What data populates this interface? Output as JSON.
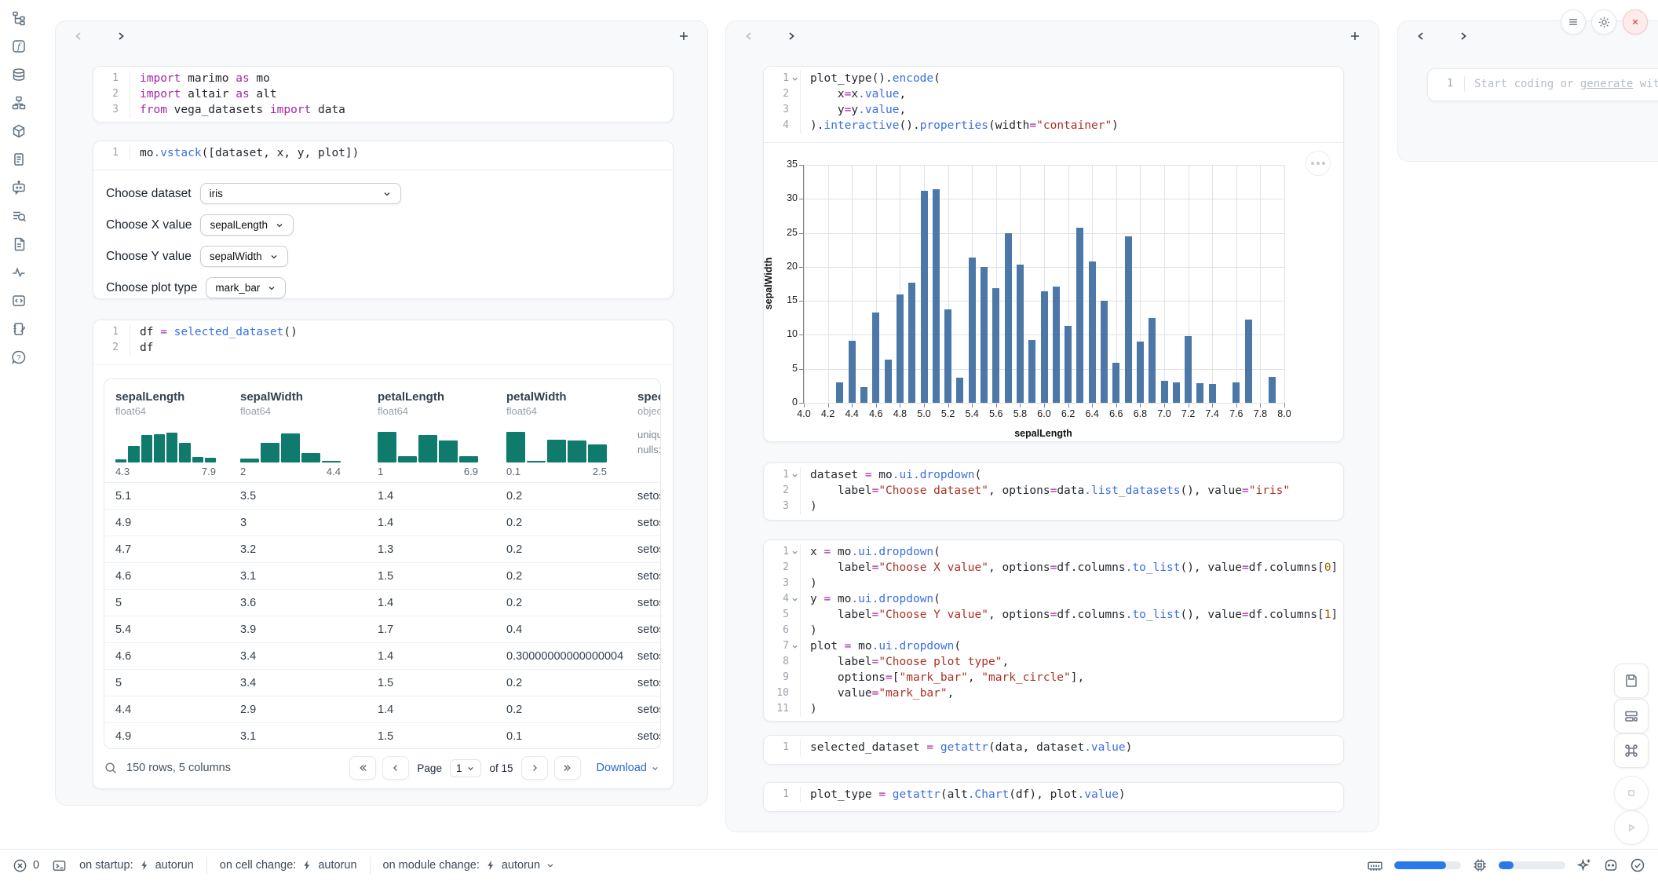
{
  "colors": {
    "accent_blue": "#2979e8",
    "chart_bar_blue": "#4c78a8",
    "histogram_teal": "#0f7b6c",
    "close_red": "#d64545"
  },
  "activity_bar": {
    "icons": [
      "file-tree",
      "functions",
      "datasources",
      "dependency-graph",
      "packages",
      "logs",
      "ai-chat",
      "trace-search",
      "documentation",
      "tracing",
      "snippets",
      "scratchpad",
      "help"
    ]
  },
  "left_panel": {
    "cells": {
      "imports": {
        "lines": [
          {
            "n": "1",
            "tk": [
              [
                "kw",
                "import"
              ],
              [
                "d",
                " marimo "
              ],
              [
                "kw",
                "as"
              ],
              [
                "d",
                " mo"
              ]
            ]
          },
          {
            "n": "2",
            "tk": [
              [
                "kw",
                "import"
              ],
              [
                "d",
                " altair "
              ],
              [
                "kw",
                "as"
              ],
              [
                "d",
                " alt"
              ]
            ]
          },
          {
            "n": "3",
            "tk": [
              [
                "kw",
                "from"
              ],
              [
                "d",
                " vega_datasets "
              ],
              [
                "kw",
                "import"
              ],
              [
                "d",
                " data"
              ]
            ]
          }
        ]
      },
      "vstack": {
        "lines": [
          {
            "n": "1",
            "tk": [
              [
                "d",
                "mo"
              ],
              [
                "f",
                ".vstack"
              ],
              [
                "d",
                "([dataset, x, y, plot])"
              ]
            ]
          }
        ]
      },
      "df": {
        "lines": [
          {
            "n": "1",
            "tk": [
              [
                "d",
                "df "
              ],
              [
                "o",
                "="
              ],
              [
                "d",
                " "
              ],
              [
                "f",
                "selected_dataset"
              ],
              [
                "d",
                "()"
              ]
            ]
          },
          {
            "n": "2",
            "tk": [
              [
                "d",
                "df"
              ]
            ]
          }
        ]
      }
    },
    "controls": [
      {
        "name": "dataset-dropdown",
        "label": "Choose dataset",
        "value": "iris",
        "wide": true
      },
      {
        "name": "x-value-dropdown",
        "label": "Choose X value",
        "value": "sepalLength"
      },
      {
        "name": "y-value-dropdown",
        "label": "Choose Y value",
        "value": "sepalWidth"
      },
      {
        "name": "plot-type-dropdown",
        "label": "Choose plot type",
        "value": "mark_bar"
      }
    ],
    "table": {
      "columns": [
        {
          "name": "sepalLength",
          "dtype": "float64",
          "min": "4.3",
          "max": "7.9",
          "hist": [
            9,
            43,
            73,
            76,
            79,
            53,
            14,
            12
          ]
        },
        {
          "name": "sepalWidth",
          "dtype": "float64",
          "min": "2",
          "max": "4.4",
          "hist": [
            11,
            52,
            78,
            24,
            4
          ]
        },
        {
          "name": "petalLength",
          "dtype": "float64",
          "min": "1",
          "max": "6.9",
          "hist": [
            82,
            17,
            72,
            58,
            17
          ]
        },
        {
          "name": "petalWidth",
          "dtype": "float64",
          "min": "0.1",
          "max": "2.5",
          "hist": [
            82,
            5,
            60,
            58,
            48
          ]
        },
        {
          "name": "species",
          "dtype": "object",
          "meta": [
            "unique",
            "nulls:"
          ]
        }
      ],
      "rows": [
        [
          "5.1",
          "3.5",
          "1.4",
          "0.2",
          "setosa"
        ],
        [
          "4.9",
          "3",
          "1.4",
          "0.2",
          "setosa"
        ],
        [
          "4.7",
          "3.2",
          "1.3",
          "0.2",
          "setosa"
        ],
        [
          "4.6",
          "3.1",
          "1.5",
          "0.2",
          "setosa"
        ],
        [
          "5",
          "3.6",
          "1.4",
          "0.2",
          "setosa"
        ],
        [
          "5.4",
          "3.9",
          "1.7",
          "0.4",
          "setosa"
        ],
        [
          "4.6",
          "3.4",
          "1.4",
          "0.30000000000000004",
          "setosa"
        ],
        [
          "5",
          "3.4",
          "1.5",
          "0.2",
          "setosa"
        ],
        [
          "4.4",
          "2.9",
          "1.4",
          "0.2",
          "setosa"
        ],
        [
          "4.9",
          "3.1",
          "1.5",
          "0.1",
          "setosa"
        ]
      ],
      "footer": {
        "summary": "150 rows, 5 columns",
        "page_label": "Page",
        "page_value": "1",
        "of_label": "of 15",
        "download_label": "Download"
      }
    }
  },
  "middle_panel": {
    "cells": {
      "plot": {
        "lines": [
          {
            "n": "1",
            "fold": true,
            "tk": [
              [
                "d",
                "plot_type()."
              ],
              [
                "f",
                "encode"
              ],
              [
                "d",
                "("
              ]
            ]
          },
          {
            "n": "2",
            "tk": [
              [
                "d",
                "    x"
              ],
              [
                "o",
                "="
              ],
              [
                "d",
                "x"
              ],
              [
                "f",
                ".value"
              ],
              [
                "d",
                ","
              ]
            ]
          },
          {
            "n": "3",
            "tk": [
              [
                "d",
                "    y"
              ],
              [
                "o",
                "="
              ],
              [
                "d",
                "y"
              ],
              [
                "f",
                ".value"
              ],
              [
                "d",
                ","
              ]
            ]
          },
          {
            "n": "4",
            "tk": [
              [
                "d",
                ")."
              ],
              [
                "f",
                "interactive"
              ],
              [
                "d",
                "()."
              ],
              [
                "f",
                "properties"
              ],
              [
                "d",
                "(width"
              ],
              [
                "o",
                "="
              ],
              [
                "s",
                "\"container\""
              ],
              [
                "d",
                ")"
              ]
            ]
          }
        ]
      },
      "dataset": {
        "lines": [
          {
            "n": "1",
            "fold": true,
            "tk": [
              [
                "d",
                "dataset "
              ],
              [
                "o",
                "="
              ],
              [
                "d",
                " mo"
              ],
              [
                "f",
                ".ui.dropdown"
              ],
              [
                "d",
                "("
              ]
            ]
          },
          {
            "n": "2",
            "tk": [
              [
                "d",
                "    label"
              ],
              [
                "o",
                "="
              ],
              [
                "s",
                "\"Choose dataset\""
              ],
              [
                "d",
                ", options"
              ],
              [
                "o",
                "="
              ],
              [
                "d",
                "data"
              ],
              [
                "f",
                ".list_datasets"
              ],
              [
                "d",
                "(), value"
              ],
              [
                "o",
                "="
              ],
              [
                "s",
                "\"iris\""
              ]
            ]
          },
          {
            "n": "3",
            "tk": [
              [
                "d",
                ")"
              ]
            ]
          }
        ]
      },
      "xyplot": {
        "lines": [
          {
            "n": "1",
            "fold": true,
            "tk": [
              [
                "d",
                "x "
              ],
              [
                "o",
                "="
              ],
              [
                "d",
                " mo"
              ],
              [
                "f",
                ".ui.dropdown"
              ],
              [
                "d",
                "("
              ]
            ]
          },
          {
            "n": "2",
            "tk": [
              [
                "d",
                "    label"
              ],
              [
                "o",
                "="
              ],
              [
                "s",
                "\"Choose X value\""
              ],
              [
                "d",
                ", options"
              ],
              [
                "o",
                "="
              ],
              [
                "d",
                "df.columns"
              ],
              [
                "f",
                ".to_list"
              ],
              [
                "d",
                "(), value"
              ],
              [
                "o",
                "="
              ],
              [
                "d",
                "df.columns["
              ],
              [
                "n",
                "0"
              ],
              [
                "d",
                "]"
              ]
            ]
          },
          {
            "n": "3",
            "tk": [
              [
                "d",
                ")"
              ]
            ]
          },
          {
            "n": "4",
            "fold": true,
            "tk": [
              [
                "d",
                "y "
              ],
              [
                "o",
                "="
              ],
              [
                "d",
                " mo"
              ],
              [
                "f",
                ".ui.dropdown"
              ],
              [
                "d",
                "("
              ]
            ]
          },
          {
            "n": "5",
            "tk": [
              [
                "d",
                "    label"
              ],
              [
                "o",
                "="
              ],
              [
                "s",
                "\"Choose Y value\""
              ],
              [
                "d",
                ", options"
              ],
              [
                "o",
                "="
              ],
              [
                "d",
                "df.columns"
              ],
              [
                "f",
                ".to_list"
              ],
              [
                "d",
                "(), value"
              ],
              [
                "o",
                "="
              ],
              [
                "d",
                "df.columns["
              ],
              [
                "n",
                "1"
              ],
              [
                "d",
                "]"
              ]
            ]
          },
          {
            "n": "6",
            "tk": [
              [
                "d",
                ")"
              ]
            ]
          },
          {
            "n": "7",
            "fold": true,
            "tk": [
              [
                "d",
                "plot "
              ],
              [
                "o",
                "="
              ],
              [
                "d",
                " mo"
              ],
              [
                "f",
                ".ui.dropdown"
              ],
              [
                "d",
                "("
              ]
            ]
          },
          {
            "n": "8",
            "tk": [
              [
                "d",
                "    label"
              ],
              [
                "o",
                "="
              ],
              [
                "s",
                "\"Choose plot type\""
              ],
              [
                "d",
                ","
              ]
            ]
          },
          {
            "n": "9",
            "tk": [
              [
                "d",
                "    options"
              ],
              [
                "o",
                "="
              ],
              [
                "d",
                "["
              ],
              [
                "s",
                "\"mark_bar\""
              ],
              [
                "d",
                ", "
              ],
              [
                "s",
                "\"mark_circle\""
              ],
              [
                "d",
                "],"
              ]
            ]
          },
          {
            "n": "10",
            "tk": [
              [
                "d",
                "    value"
              ],
              [
                "o",
                "="
              ],
              [
                "s",
                "\"mark_bar\""
              ],
              [
                "d",
                ","
              ]
            ]
          },
          {
            "n": "11",
            "tk": [
              [
                "d",
                ")"
              ]
            ]
          }
        ]
      },
      "selected": {
        "lines": [
          {
            "n": "1",
            "tk": [
              [
                "d",
                "selected_dataset "
              ],
              [
                "o",
                "="
              ],
              [
                "d",
                " "
              ],
              [
                "f",
                "getattr"
              ],
              [
                "d",
                "(data, dataset"
              ],
              [
                "f",
                ".value"
              ],
              [
                "d",
                ")"
              ]
            ]
          }
        ]
      },
      "plottype": {
        "lines": [
          {
            "n": "1",
            "tk": [
              [
                "d",
                "plot_type "
              ],
              [
                "o",
                "="
              ],
              [
                "d",
                " "
              ],
              [
                "f",
                "getattr"
              ],
              [
                "d",
                "(alt"
              ],
              [
                "f",
                ".Chart"
              ],
              [
                "d",
                "(df), plot"
              ],
              [
                "f",
                ".value"
              ],
              [
                "d",
                ")"
              ]
            ]
          }
        ]
      }
    }
  },
  "chart_data": {
    "type": "bar",
    "xlabel": "sepalLength",
    "ylabel": "sepalWidth",
    "xlim": [
      4.0,
      8.0
    ],
    "ylim": [
      0,
      35
    ],
    "grid": true,
    "bar_color": "#4c78a8",
    "x_tick_labels": [
      "4.0",
      "4.2",
      "4.4",
      "4.6",
      "4.8",
      "5.0",
      "5.2",
      "5.4",
      "5.6",
      "5.8",
      "6.0",
      "6.2",
      "6.4",
      "6.6",
      "6.8",
      "7.0",
      "7.2",
      "7.4",
      "7.6",
      "7.8",
      "8.0"
    ],
    "y_ticks": [
      0,
      5,
      10,
      15,
      20,
      25,
      30,
      35
    ],
    "x": [
      4.3,
      4.4,
      4.5,
      4.6,
      4.7,
      4.8,
      4.9,
      5.0,
      5.1,
      5.2,
      5.3,
      5.4,
      5.5,
      5.6,
      5.7,
      5.8,
      5.9,
      6.0,
      6.1,
      6.2,
      6.3,
      6.4,
      6.5,
      6.6,
      6.7,
      6.8,
      6.9,
      7.0,
      7.1,
      7.2,
      7.3,
      7.4,
      7.6,
      7.7,
      7.9
    ],
    "values": [
      3.0,
      9.1,
      2.3,
      13.3,
      6.4,
      15.9,
      17.7,
      31.2,
      31.4,
      13.7,
      3.7,
      21.4,
      20.0,
      16.9,
      24.9,
      20.3,
      9.2,
      16.4,
      17.1,
      11.3,
      25.8,
      20.8,
      15.0,
      5.9,
      24.5,
      9.0,
      12.5,
      3.2,
      3.0,
      9.8,
      2.9,
      2.8,
      3.0,
      12.2,
      3.8
    ]
  },
  "right_panel": {
    "line_number": "1",
    "placeholder_prefix": "Start coding or ",
    "placeholder_link": "generate",
    "placeholder_suffix": " with"
  },
  "status_bar": {
    "error_count": "0",
    "startup_label": "on startup:",
    "startup_value": "autorun",
    "cell_change_label": "on cell change:",
    "cell_change_value": "autorun",
    "module_change_label": "on module change:",
    "module_change_value": "autorun",
    "ram_pct": 78,
    "cpu_pct": 22
  }
}
